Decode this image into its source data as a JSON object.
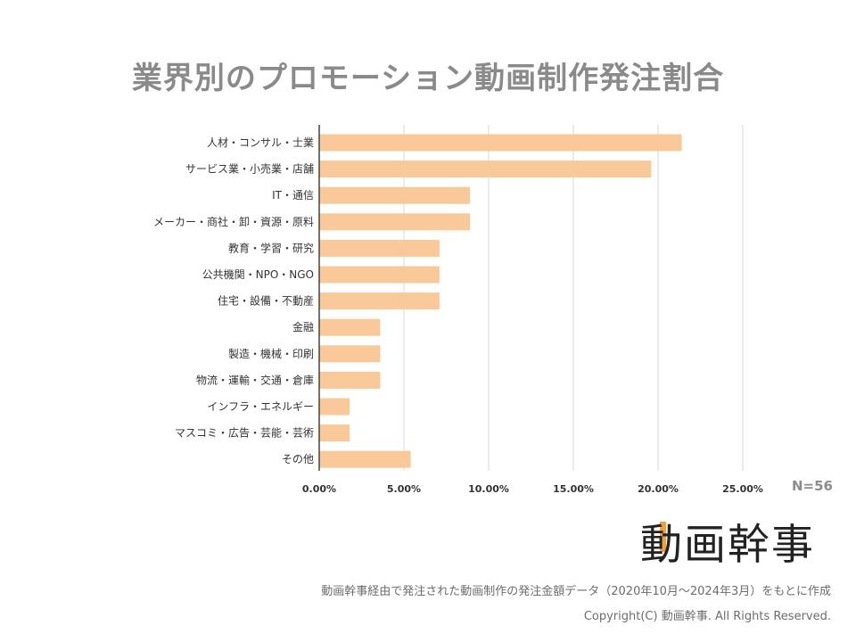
{
  "title": "業界別のプロモーション動画制作発注割合",
  "n_label": "N=56",
  "logo": "動画幹事",
  "source_note": "動画幹事経由で発注された動画制作の発注金額データ（2020年10月〜2024年3月）をもとに作成",
  "copyright": "Copyright(C) 動画幹事. All Rights Reserved.",
  "colors": {
    "bar": "#f9c999",
    "grid": "#d9d9d9",
    "axis": "#444444"
  },
  "chart_data": {
    "type": "bar",
    "orientation": "horizontal",
    "title": "業界別のプロモーション動画制作発注割合",
    "xlabel": "",
    "ylabel": "",
    "xlim": [
      0,
      0.25
    ],
    "ticks": [
      0,
      0.05,
      0.1,
      0.15,
      0.2,
      0.25
    ],
    "tick_labels": [
      "0.00%",
      "5.00%",
      "10.00%",
      "15.00%",
      "20.00%",
      "25.00%"
    ],
    "grid": true,
    "categories": [
      "人材・コンサル・士業",
      "サービス業・小売業・店舗",
      "IT・通信",
      "メーカー・商社・卸・資源・原料",
      "教育・学習・研究",
      "公共機関・NPO・NGO",
      "住宅・設備・不動産",
      "金融",
      "製造・機械・印刷",
      "物流・運輸・交通・倉庫",
      "インフラ・エネルギー",
      "マスコミ・広告・芸能・芸術",
      "その他"
    ],
    "values": [
      0.214,
      0.196,
      0.089,
      0.089,
      0.071,
      0.071,
      0.071,
      0.036,
      0.036,
      0.036,
      0.018,
      0.018,
      0.054
    ]
  }
}
